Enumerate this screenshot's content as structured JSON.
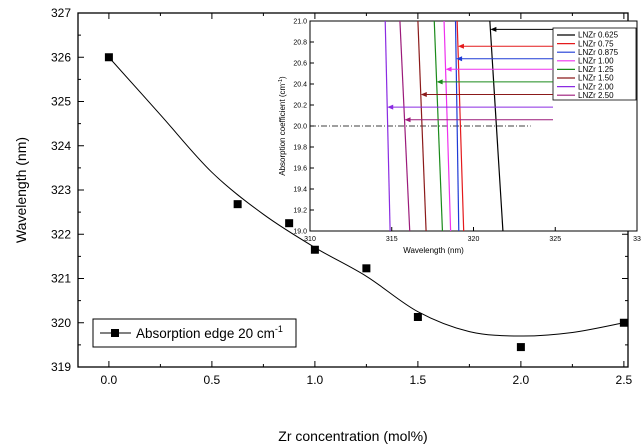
{
  "chart_data": [
    {
      "type": "scatter",
      "xlabel": "Zr concentration (mol%)",
      "ylabel": "Wavelength (nm)",
      "xlim": [
        -0.15,
        2.52
      ],
      "ylim": [
        319,
        327
      ],
      "xticks": [
        "0.0",
        "0.5",
        "1.0",
        "1.5",
        "2.0",
        "2.5"
      ],
      "yticks": [
        "319",
        "320",
        "321",
        "322",
        "323",
        "324",
        "325",
        "326",
        "327"
      ],
      "series": [
        {
          "name": "Absorption edge  20 cm",
          "name_superscript": "-1",
          "marker": "square",
          "color": "#000000",
          "x": [
            0.0,
            0.625,
            0.875,
            1.0,
            1.25,
            1.5,
            2.0,
            2.5
          ],
          "y": [
            326.0,
            322.68,
            322.25,
            321.65,
            321.23,
            320.13,
            319.45,
            320.0
          ]
        }
      ],
      "fit_curve": [
        [
          0.0,
          326.0
        ],
        [
          0.25,
          324.7
        ],
        [
          0.5,
          323.4
        ],
        [
          0.75,
          322.45
        ],
        [
          1.0,
          321.7
        ],
        [
          1.25,
          321.05
        ],
        [
          1.5,
          320.25
        ],
        [
          1.75,
          319.8
        ],
        [
          2.0,
          319.7
        ],
        [
          2.25,
          319.78
        ],
        [
          2.5,
          320.0
        ]
      ],
      "legend_position": "bottom-left",
      "grid": false
    },
    {
      "type": "line",
      "xlabel": "Wavelength (nm)",
      "ylabel": "Absorption coefficient (cm",
      "ylabel_superscript": "-1",
      "ylabel_suffix": ")",
      "xlim": [
        310,
        330
      ],
      "ylim": [
        19.0,
        21.0
      ],
      "xticks": [
        "310",
        "315",
        "320",
        "325",
        "33"
      ],
      "yticks": [
        "19.0",
        "19.2",
        "19.4",
        "19.6",
        "19.8",
        "20.0",
        "20.2",
        "20.4",
        "20.6",
        "20.8",
        "21.0"
      ],
      "reference_line": {
        "y": 20.0,
        "x_end": 323.5,
        "style": "dash-dot"
      },
      "series": [
        {
          "name": "LNZr 0.625",
          "color": "#000000",
          "x": [
            321.0,
            321.8
          ],
          "y": [
            21.0,
            19.0
          ],
          "arrow_y": 20.92
        },
        {
          "name": "LNZr 0.75",
          "color": "#e41a1c",
          "x": [
            319.0,
            319.4
          ],
          "y": [
            21.0,
            19.0
          ],
          "arrow_y": 20.76
        },
        {
          "name": "LNZr 0.875",
          "color": "#1f3bd6",
          "x": [
            318.9,
            319.1
          ],
          "y": [
            21.0,
            19.0
          ],
          "arrow_y": 20.64
        },
        {
          "name": "LNZr 1.00",
          "color": "#ee30ee",
          "x": [
            318.2,
            318.6
          ],
          "y": [
            21.0,
            19.0
          ],
          "arrow_y": 20.54
        },
        {
          "name": "LNZr 1.25",
          "color": "#1a8a1a",
          "x": [
            317.6,
            318.1
          ],
          "y": [
            21.0,
            19.0
          ],
          "arrow_y": 20.42
        },
        {
          "name": "LNZr 1.50",
          "color": "#8b1a1a",
          "x": [
            316.6,
            317.1
          ],
          "y": [
            21.0,
            19.0
          ],
          "arrow_y": 20.3
        },
        {
          "name": "LNZr 2.00",
          "color": "#8a2be2",
          "x": [
            314.6,
            314.9
          ],
          "y": [
            21.0,
            19.0
          ],
          "arrow_y": 20.18
        },
        {
          "name": "LNZr 2.50",
          "color": "#9b1a7a",
          "x": [
            315.5,
            316.1
          ],
          "y": [
            21.0,
            19.0
          ],
          "arrow_y": 20.06
        }
      ],
      "legend_position": "top-right"
    }
  ]
}
